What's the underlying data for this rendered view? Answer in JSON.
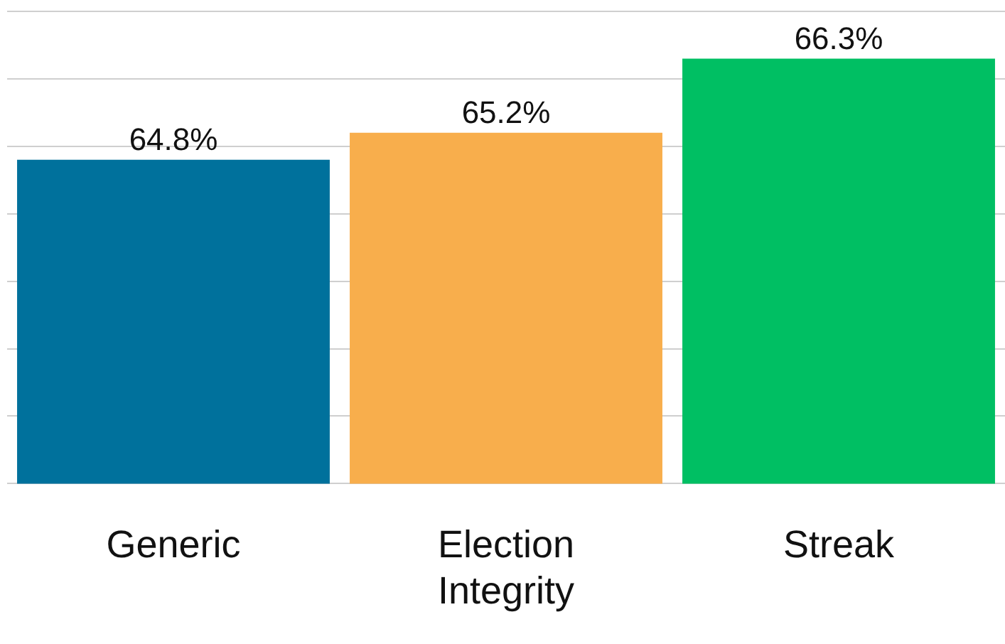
{
  "chart_data": {
    "type": "bar",
    "categories": [
      "Generic",
      "Election Integrity",
      "Streak"
    ],
    "values": [
      64.8,
      65.2,
      66.3
    ],
    "colors": [
      "#00719c",
      "#f8ae4c",
      "#00bf63"
    ],
    "value_labels": [
      "64.8%",
      "65.2%",
      "66.3%"
    ],
    "ylim": [
      60,
      67
    ],
    "yticks": [
      {
        "value": 60,
        "label": null
      },
      {
        "value": 61,
        "label": null
      },
      {
        "value": 62,
        "label": null
      },
      {
        "value": 63,
        "label": null
      },
      {
        "value": 64,
        "label": null
      },
      {
        "value": 65,
        "label": null
      },
      {
        "value": 66,
        "label": null
      },
      {
        "value": 67,
        "label": null
      }
    ],
    "grid": "y",
    "legend": false
  }
}
